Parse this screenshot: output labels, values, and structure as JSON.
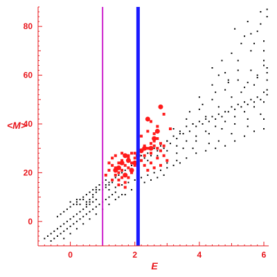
{
  "chart_data": {
    "type": "scatter",
    "title": "",
    "xlabel": "E",
    "ylabel": "<M>",
    "xlim": [
      -1.0,
      6.15
    ],
    "ylim": [
      -10,
      88
    ],
    "x_ticks": [
      0,
      2,
      4,
      6
    ],
    "y_ticks": [
      0,
      20,
      40,
      60,
      80
    ],
    "grid": false,
    "axis_color": "#e8141a",
    "vertical_lines": [
      {
        "x": 1.0,
        "color": "#cc22cc"
      },
      {
        "x": 2.1,
        "color": "#1a1aff"
      }
    ],
    "series": [
      {
        "color": "#000000",
        "marker": "dot",
        "points": [
          [
            -0.8,
            -7
          ],
          [
            -0.7,
            -6
          ],
          [
            -0.6,
            -5
          ],
          [
            -0.5,
            -4
          ],
          [
            -0.4,
            -3
          ],
          [
            -0.3,
            -2
          ],
          [
            -0.2,
            -1
          ],
          [
            -0.1,
            0
          ],
          [
            0.0,
            1
          ],
          [
            0.1,
            2
          ],
          [
            0.2,
            3
          ],
          [
            0.3,
            4
          ],
          [
            0.4,
            5
          ],
          [
            0.5,
            6
          ],
          [
            0.6,
            7
          ],
          [
            0.7,
            8
          ],
          [
            0.8,
            9
          ],
          [
            -0.6,
            -8
          ],
          [
            -0.5,
            -7
          ],
          [
            -0.4,
            -6
          ],
          [
            -0.3,
            -5
          ],
          [
            -0.2,
            -4
          ],
          [
            -0.1,
            -3
          ],
          [
            0.0,
            -2
          ],
          [
            0.1,
            -1
          ],
          [
            0.2,
            0
          ],
          [
            0.3,
            1
          ],
          [
            0.4,
            2
          ],
          [
            0.5,
            3
          ],
          [
            0.6,
            4
          ],
          [
            0.7,
            5
          ],
          [
            0.8,
            6
          ],
          [
            0.9,
            7
          ],
          [
            1.0,
            8
          ],
          [
            1.1,
            9
          ],
          [
            1.2,
            10
          ],
          [
            1.3,
            11
          ],
          [
            1.4,
            12
          ],
          [
            -0.4,
            2
          ],
          [
            -0.3,
            3
          ],
          [
            -0.2,
            4
          ],
          [
            -0.1,
            5
          ],
          [
            0.0,
            6
          ],
          [
            0.1,
            7
          ],
          [
            0.2,
            8
          ],
          [
            0.3,
            9
          ],
          [
            0.4,
            10
          ],
          [
            0.5,
            11
          ],
          [
            0.6,
            12
          ],
          [
            0.7,
            13
          ],
          [
            0.8,
            14
          ],
          [
            0.9,
            15
          ],
          [
            -0.2,
            -7
          ],
          [
            0.0,
            -5
          ],
          [
            0.2,
            -3
          ],
          [
            0.4,
            -1
          ],
          [
            0.6,
            1
          ],
          [
            0.8,
            3
          ],
          [
            1.0,
            5
          ],
          [
            1.2,
            7
          ],
          [
            1.4,
            9
          ],
          [
            1.6,
            11
          ],
          [
            0.0,
            8
          ],
          [
            0.2,
            9
          ],
          [
            0.4,
            9
          ],
          [
            0.5,
            8
          ],
          [
            0.6,
            9
          ],
          [
            0.7,
            11
          ],
          [
            0.8,
            13
          ],
          [
            0.9,
            15
          ],
          [
            1.0,
            16
          ],
          [
            1.1,
            17
          ],
          [
            0.2,
            7
          ],
          [
            0.3,
            7
          ],
          [
            0.5,
            7
          ],
          [
            0.6,
            8
          ],
          [
            0.7,
            10
          ],
          [
            0.8,
            12
          ],
          [
            0.9,
            13
          ],
          [
            1.1,
            14
          ],
          [
            1.2,
            15
          ],
          [
            1.3,
            16
          ],
          [
            1.0,
            13
          ],
          [
            1.1,
            15
          ],
          [
            1.2,
            16
          ],
          [
            1.3,
            17
          ],
          [
            1.4,
            18
          ],
          [
            1.5,
            19
          ],
          [
            1.6,
            20
          ],
          [
            1.7,
            21
          ],
          [
            1.8,
            22
          ],
          [
            1.9,
            23
          ],
          [
            1.2,
            13
          ],
          [
            1.4,
            14
          ],
          [
            1.6,
            15
          ],
          [
            1.8,
            16
          ],
          [
            2.0,
            17
          ],
          [
            2.2,
            18
          ],
          [
            2.4,
            19
          ],
          [
            2.6,
            20
          ],
          [
            2.8,
            21
          ],
          [
            3.0,
            22
          ],
          [
            3.2,
            23
          ],
          [
            3.4,
            24
          ],
          [
            1.5,
            10
          ],
          [
            1.7,
            11
          ],
          [
            1.9,
            13
          ],
          [
            2.1,
            15
          ],
          [
            2.3,
            16
          ],
          [
            2.5,
            17
          ],
          [
            2.7,
            18
          ],
          [
            2.9,
            19
          ],
          [
            2.2,
            27
          ],
          [
            2.4,
            28
          ],
          [
            2.6,
            30
          ],
          [
            2.8,
            31
          ],
          [
            3.0,
            33
          ],
          [
            3.2,
            35
          ],
          [
            3.4,
            37
          ],
          [
            3.6,
            39
          ],
          [
            3.8,
            40
          ],
          [
            4.0,
            41
          ],
          [
            4.2,
            42
          ],
          [
            4.4,
            43
          ],
          [
            4.6,
            44
          ],
          [
            4.8,
            45
          ],
          [
            5.0,
            47
          ],
          [
            5.2,
            48
          ],
          [
            5.4,
            49
          ],
          [
            5.6,
            50
          ],
          [
            5.8,
            51
          ],
          [
            6.0,
            53
          ],
          [
            6.1,
            54
          ],
          [
            2.3,
            26
          ],
          [
            2.5,
            27
          ],
          [
            2.7,
            29
          ],
          [
            2.9,
            30
          ],
          [
            3.1,
            32
          ],
          [
            3.3,
            34
          ],
          [
            3.5,
            36
          ],
          [
            3.7,
            37
          ],
          [
            3.9,
            39
          ],
          [
            4.1,
            40
          ],
          [
            4.3,
            41
          ],
          [
            4.5,
            42
          ],
          [
            4.7,
            43
          ],
          [
            4.9,
            45
          ],
          [
            5.1,
            46
          ],
          [
            5.3,
            47
          ],
          [
            5.5,
            48
          ],
          [
            5.7,
            49
          ],
          [
            5.9,
            50
          ],
          [
            6.1,
            52
          ],
          [
            2.4,
            25
          ],
          [
            2.7,
            27
          ],
          [
            3.0,
            29
          ],
          [
            3.3,
            31
          ],
          [
            3.6,
            33
          ],
          [
            3.9,
            35
          ],
          [
            4.2,
            37
          ],
          [
            4.5,
            39
          ],
          [
            4.8,
            41
          ],
          [
            5.1,
            43
          ],
          [
            5.4,
            45
          ],
          [
            5.7,
            47
          ],
          [
            6.0,
            49
          ],
          [
            3.0,
            24
          ],
          [
            3.3,
            25
          ],
          [
            3.6,
            26
          ],
          [
            3.9,
            28
          ],
          [
            4.2,
            29
          ],
          [
            4.5,
            30
          ],
          [
            4.8,
            31
          ],
          [
            5.1,
            33
          ],
          [
            5.4,
            35
          ],
          [
            5.7,
            37
          ],
          [
            6.0,
            38
          ],
          [
            3.0,
            33
          ],
          [
            3.4,
            36
          ],
          [
            3.8,
            40
          ],
          [
            4.2,
            43
          ],
          [
            4.6,
            47
          ],
          [
            5.0,
            51
          ],
          [
            5.4,
            55
          ],
          [
            5.8,
            60
          ],
          [
            6.1,
            63
          ],
          [
            3.2,
            38
          ],
          [
            3.6,
            42
          ],
          [
            4.0,
            46
          ],
          [
            4.4,
            50
          ],
          [
            4.8,
            54
          ],
          [
            5.2,
            58
          ],
          [
            5.6,
            62
          ],
          [
            6.0,
            66
          ],
          [
            3.5,
            30
          ],
          [
            3.9,
            33
          ],
          [
            4.3,
            36
          ],
          [
            4.7,
            38
          ],
          [
            5.1,
            40
          ],
          [
            5.5,
            42
          ],
          [
            5.9,
            44
          ],
          [
            4.0,
            51
          ],
          [
            4.4,
            56
          ],
          [
            4.8,
            61
          ],
          [
            5.2,
            66
          ],
          [
            5.6,
            70
          ],
          [
            6.0,
            74
          ],
          [
            4.4,
            63
          ],
          [
            4.7,
            66
          ],
          [
            5.0,
            69
          ],
          [
            5.3,
            73
          ],
          [
            5.6,
            77
          ],
          [
            5.9,
            81
          ],
          [
            6.1,
            84
          ],
          [
            5.1,
            79
          ],
          [
            5.4,
            76
          ],
          [
            5.7,
            73
          ],
          [
            5.9,
            86
          ],
          [
            6.1,
            87
          ],
          [
            5.5,
            82
          ],
          [
            5.8,
            78
          ],
          [
            6.0,
            70
          ],
          [
            4.6,
            60
          ],
          [
            4.9,
            58
          ],
          [
            5.2,
            62
          ],
          [
            5.5,
            57
          ],
          [
            5.8,
            59
          ],
          [
            6.0,
            64
          ],
          [
            6.1,
            61
          ],
          [
            3.7,
            45
          ],
          [
            4.1,
            48
          ],
          [
            4.5,
            53
          ],
          [
            4.9,
            57
          ],
          [
            5.3,
            53
          ],
          [
            5.7,
            56
          ],
          [
            6.1,
            58
          ],
          [
            3.3,
            28
          ],
          [
            3.8,
            30
          ],
          [
            4.3,
            32
          ],
          [
            4.6,
            33
          ],
          [
            5.0,
            36
          ],
          [
            5.5,
            39
          ],
          [
            6.0,
            42
          ]
        ]
      },
      {
        "color": "#ff1a1a",
        "marker": "square",
        "points": [
          [
            1.1,
            19
          ],
          [
            1.2,
            21
          ],
          [
            1.3,
            23
          ],
          [
            1.4,
            22
          ],
          [
            1.5,
            24
          ],
          [
            1.5,
            20
          ],
          [
            1.6,
            21
          ],
          [
            1.6,
            25
          ],
          [
            1.7,
            23
          ],
          [
            1.7,
            19
          ],
          [
            1.8,
            22
          ],
          [
            1.8,
            26
          ],
          [
            1.9,
            24
          ],
          [
            1.9,
            20
          ],
          [
            2.0,
            23
          ],
          [
            1.3,
            17
          ],
          [
            1.4,
            19
          ],
          [
            1.5,
            17
          ],
          [
            1.6,
            18
          ],
          [
            1.7,
            16
          ],
          [
            1.8,
            18
          ],
          [
            1.5,
            15
          ],
          [
            1.7,
            14
          ],
          [
            2.0,
            28
          ],
          [
            2.1,
            30
          ],
          [
            2.2,
            29
          ],
          [
            2.3,
            31
          ],
          [
            2.3,
            27
          ],
          [
            2.4,
            30
          ],
          [
            2.5,
            32
          ],
          [
            2.5,
            28
          ],
          [
            2.6,
            31
          ],
          [
            2.6,
            33
          ],
          [
            2.7,
            30
          ],
          [
            2.7,
            34
          ],
          [
            2.8,
            32
          ],
          [
            2.8,
            29
          ],
          [
            2.9,
            31
          ],
          [
            2.2,
            25
          ],
          [
            2.3,
            23
          ],
          [
            2.4,
            21
          ],
          [
            2.5,
            24
          ],
          [
            2.6,
            22
          ],
          [
            2.7,
            26
          ],
          [
            2.8,
            23
          ],
          [
            2.9,
            27
          ],
          [
            3.0,
            25
          ],
          [
            2.2,
            35
          ],
          [
            2.4,
            37
          ],
          [
            2.5,
            41
          ],
          [
            2.6,
            36
          ],
          [
            2.7,
            39
          ],
          [
            2.9,
            44
          ],
          [
            3.1,
            38
          ],
          [
            2.1,
            40
          ],
          [
            1.4,
            27
          ],
          [
            1.6,
            28
          ],
          [
            1.8,
            27
          ],
          [
            1.9,
            28
          ],
          [
            2.0,
            26
          ],
          [
            1.2,
            24
          ],
          [
            1.3,
            26
          ]
        ]
      },
      {
        "color": "#ff1a1a",
        "marker": "circle",
        "points": [
          [
            1.7,
            27
          ],
          [
            1.8,
            25
          ],
          [
            1.6,
            24
          ],
          [
            1.5,
            22
          ],
          [
            1.4,
            21
          ],
          [
            1.9,
            21
          ],
          [
            2.0,
            24
          ],
          [
            2.1,
            27
          ],
          [
            2.2,
            29
          ],
          [
            2.3,
            30
          ],
          [
            2.5,
            30
          ],
          [
            2.6,
            34
          ],
          [
            2.4,
            42
          ],
          [
            2.8,
            47
          ],
          [
            2.7,
            37
          ],
          [
            1.7,
            19
          ]
        ]
      }
    ]
  }
}
